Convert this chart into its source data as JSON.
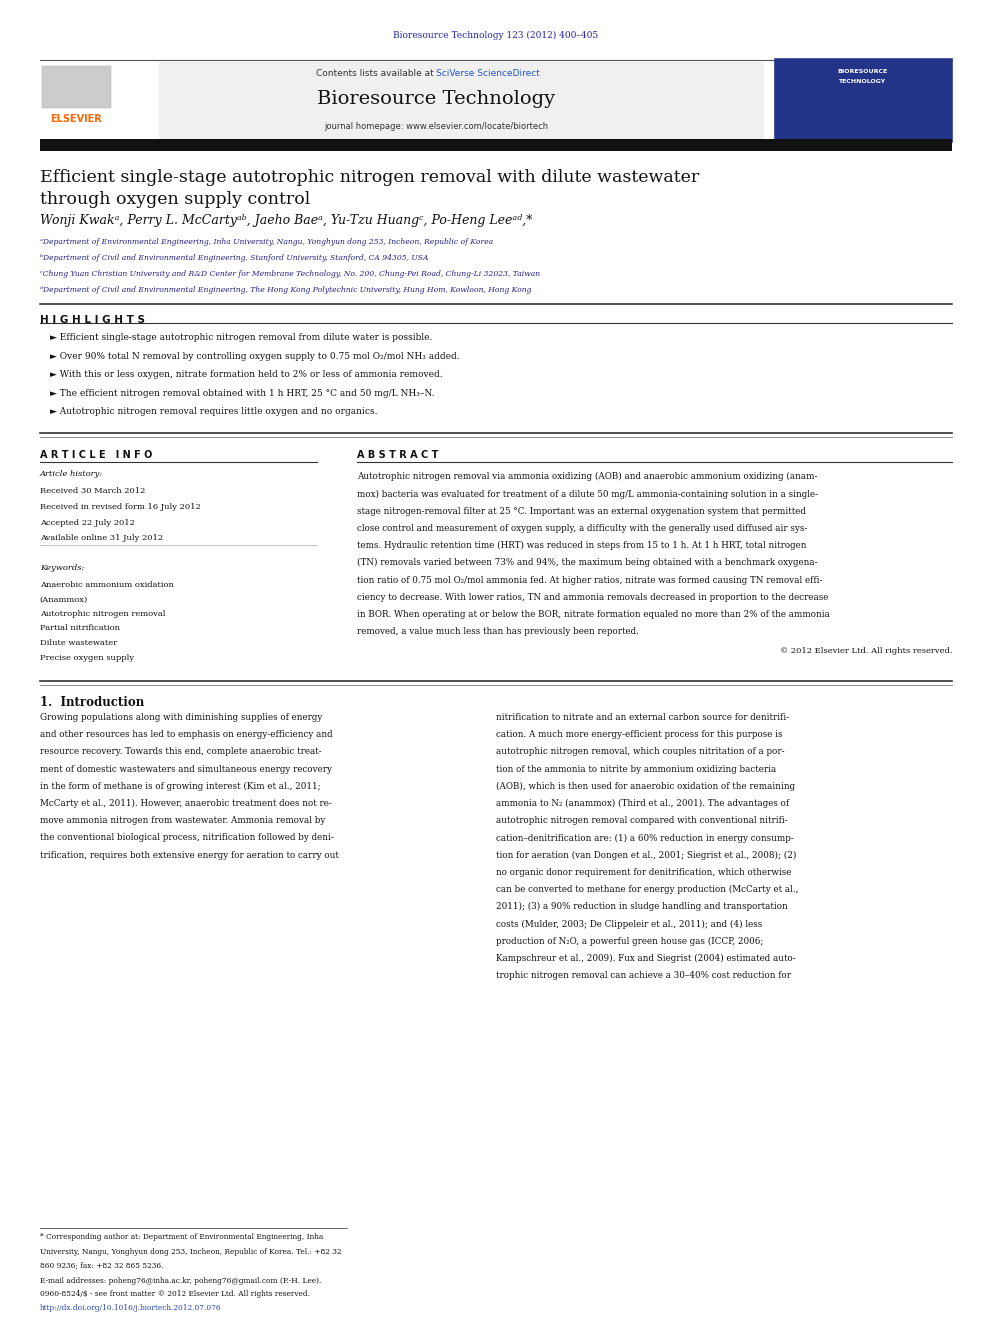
{
  "page_width": 9.92,
  "page_height": 13.23,
  "bg_color": "#ffffff",
  "header_journal_ref": "Bioresource Technology 123 (2012) 400–405",
  "header_ref_color": "#2222aa",
  "journal_name": "Bioresource Technology",
  "journal_homepage": "journal homepage: www.elsevier.com/locate/biortech",
  "contents_text": "Contents lists available at ",
  "sciverse_text": "SciVerse ScienceDirect",
  "sciverse_color": "#2255cc",
  "elsevier_color": "#ff6600",
  "article_title_line1": "Efficient single-stage autotrophic nitrogen removal with dilute wastewater",
  "article_title_line2": "through oxygen supply control",
  "authors": "Wonji Kwakᵃ, Perry L. McCartyᵃᵇ, Jaeho Baeᵃ, Yu-Tzu Huangᶜ, Po-Heng Leeᵃᵈ,*",
  "affil_a": "ᵃDepartment of Environmental Engineering, Inha University, Nangu, Yonghyun dong 253, Incheon, Republic of Korea",
  "affil_b": "ᵇDepartment of Civil and Environmental Engineering, Stanford University, Stanford, CA 94305, USA",
  "affil_c": "ᶜChung Yuan Christian University and R&D Center for Membrane Technology, No. 200, Chung-Pei Road, Chung-Li 32023, Taiwan",
  "affil_d": "ᵈDepartment of Civil and Environmental Engineering, The Hong Kong Polytechnic University, Hung Hom, Kowloon, Hong Kong",
  "highlights_title": "H I G H L I G H T S",
  "highlights": [
    "Efficient single-stage autotrophic nitrogen removal from dilute water is possible.",
    "Over 90% total N removal by controlling oxygen supply to 0.75 mol O₂/mol NH₃ added.",
    "With this or less oxygen, nitrate formation held to 2% or less of ammonia removed.",
    "The efficient nitrogen removal obtained with 1 h HRT, 25 °C and 50 mg/L NH₃–N.",
    "Autotrophic nitrogen removal requires little oxygen and no organics."
  ],
  "article_info_title": "A R T I C L E   I N F O",
  "abstract_title": "A B S T R A C T",
  "article_history_label": "Article history:",
  "received": "Received 30 March 2012",
  "received_revised": "Received in revised form 16 July 2012",
  "accepted": "Accepted 22 July 2012",
  "available": "Available online 31 July 2012",
  "keywords_label": "Keywords:",
  "keywords": [
    "Anaerobic ammonium oxidation",
    "(Anammox)",
    "Autotrophic nitrogen removal",
    "Partial nitrification",
    "Dilute wastewater",
    "Precise oxygen supply"
  ],
  "abstract_text": "Autotrophic nitrogen removal via ammonia oxidizing (AOB) and anaerobic ammonium oxidizing (anam-\nmox) bacteria was evaluated for treatment of a dilute 50 mg/L ammonia-containing solution in a single-\nstage nitrogen-removal filter at 25 °C. Important was an external oxygenation system that permitted\nclose control and measurement of oxygen supply, a difficulty with the generally used diffused air sys-\ntems. Hydraulic retention time (HRT) was reduced in steps from 15 to 1 h. At 1 h HRT, total nitrogen\n(TN) removals varied between 73% and 94%, the maximum being obtained with a benchmark oxygena-\ntion ratio of 0.75 mol O₂/mol ammonia fed. At higher ratios, nitrate was formed causing TN removal effi-\nciency to decrease. With lower ratios, TN and ammonia removals decreased in proportion to the decrease\nin BOR. When operating at or below the BOR, nitrate formation equaled no more than 2% of the ammonia\nremoved, a value much less than has previously been reported.",
  "copyright_text": "© 2012 Elsevier Ltd. All rights reserved.",
  "section1_title": "1.  Introduction",
  "intro_col1": "Growing populations along with diminishing supplies of energy\nand other resources has led to emphasis on energy-efficiency and\nresource recovery. Towards this end, complete anaerobic treat-\nment of domestic wastewaters and simultaneous energy recovery\nin the form of methane is of growing interest (Kim et al., 2011;\nMcCarty et al., 2011). However, anaerobic treatment does not re-\nmove ammonia nitrogen from wastewater. Ammonia removal by\nthe conventional biological process, nitrification followed by deni-\ntrification, requires both extensive energy for aeration to carry out",
  "intro_col2": "nitrification to nitrate and an external carbon source for denitrifi-\ncation. A much more energy-efficient process for this purpose is\nautotrophic nitrogen removal, which couples nitritation of a por-\ntion of the ammonia to nitrite by ammonium oxidizing bacteria\n(AOB), which is then used for anaerobic oxidation of the remaining\nammonia to N₂ (anammox) (Third et al., 2001). The advantages of\nautotrophic nitrogen removal compared with conventional nitrifi-\ncation–denitrification are: (1) a 60% reduction in energy consump-\ntion for aeration (van Dongen et al., 2001; Siegrist et al., 2008); (2)\nno organic donor requirement for denitrification, which otherwise\ncan be converted to methane for energy production (McCarty et al.,\n2011); (3) a 90% reduction in sludge handling and transportation\ncosts (Mulder, 2003; De Clippeleir et al., 2011); and (4) less\nproduction of N₂O, a powerful green house gas (ICCP, 2006;\nKampschreur et al., 2009). Fux and Siegrist (2004) estimated auto-\ntrophic nitrogen removal can achieve a 30–40% cost reduction for",
  "footnote_text": "* Corresponding author at: Department of Environmental Engineering, Inha\nUniversity, Nangu, Yonghyun dong 253, Incheon, Republic of Korea. Tel.: +82 32\n860 9236; fax: +82 32 865 5236.\nE-mail addresses: poheng76@inha.ac.kr, poheng76@gmail.com (P.-H. Lee).",
  "issn_line1": "0960-8524/$ - see front matter © 2012 Elsevier Ltd. All rights reserved.",
  "issn_line2": "http://dx.doi.org/10.1016/j.biortech.2012.07.076",
  "issn_color": "#2244aa",
  "header_band_color": "#000000",
  "highlights_band_color": "#000000",
  "section_line_color": "#333333"
}
